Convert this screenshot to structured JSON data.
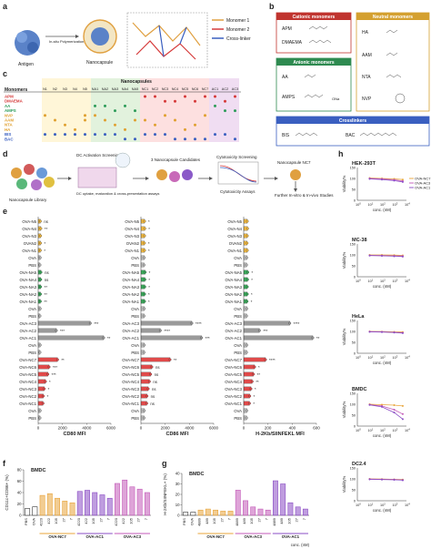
{
  "panels": {
    "a": {
      "letter": "a",
      "antigen": "Antigen",
      "step": "In-situ Polymerization",
      "nanocapsule": "Nanocapsule",
      "legend": [
        "Monomer 1",
        "Monomer 2",
        "Cross-linker"
      ]
    },
    "b": {
      "letter": "b",
      "cationic": {
        "title": "Cationic monomers",
        "items": [
          "APM",
          "DMAEMA"
        ]
      },
      "neutral": {
        "title": "Neutral monomers",
        "items": [
          "HA",
          "AAM",
          "NTA",
          "NVP"
        ]
      },
      "anionic": {
        "title": "Anionic monomers",
        "items": [
          "AA",
          "AMPS"
        ]
      },
      "crosslinkers": {
        "title": "Crosslinkers",
        "items": [
          "BIS",
          "BAC"
        ]
      },
      "chem_labels": [
        "ONa"
      ]
    },
    "c": {
      "letter": "c",
      "header_nanocapsules": "Nanocapsules",
      "header_monomers": "Monomers",
      "columns": [
        "N1",
        "N2",
        "N3",
        "N4",
        "N5",
        "NA1",
        "NA2",
        "NA3",
        "NA4",
        "NA5",
        "NC1",
        "NC2",
        "NC3",
        "NC4",
        "NC5",
        "NC6",
        "NC7",
        "AC1",
        "AC2",
        "AC3"
      ],
      "rows": [
        {
          "name": "APM",
          "color": "#d63a3a"
        },
        {
          "name": "DMAEMA",
          "color": "#d63a3a"
        },
        {
          "name": "AA",
          "color": "#2e9c5a"
        },
        {
          "name": "AMPS",
          "color": "#2e9c5a"
        },
        {
          "name": "NVP",
          "color": "#e0a030"
        },
        {
          "name": "AAM",
          "color": "#e0a030"
        },
        {
          "name": "NTA",
          "color": "#e0a030"
        },
        {
          "name": "HA",
          "color": "#e0a030"
        },
        {
          "name": "BIS",
          "color": "#3a5fc0"
        },
        {
          "name": "BAC",
          "color": "#3a5fc0"
        }
      ]
    },
    "d": {
      "letter": "d",
      "library": "Nanocapsule Library",
      "screen_title": "DC Activation Screening",
      "screen_sub": "DC uptake, maturation & cross-presentation assays",
      "candidates": "3 Nanocapsule Candidates",
      "cyto_title": "Cytotoxicity Screening",
      "cyto_sub": "Cytotoxicity Assays",
      "final": "Nanocapsule NC7",
      "further": "Further In-vitro & In-vivo Studies"
    },
    "e": {
      "letter": "e",
      "categories": [
        "OVA-N5",
        "OVA-N4",
        "OVA-N3",
        "OVAN2",
        "OVA-N1",
        "OVA",
        "PBS",
        "OVA-NA5",
        "OVA-NA4",
        "OVA-NA3",
        "OVA-NA2",
        "OVA-NA1",
        "OVA",
        "PBS",
        "OVA-AC3",
        "OVA-AC2",
        "OVA-AC1",
        "OVA",
        "PBS",
        "OVA-NC7",
        "OVA-NC6",
        "OVA-NC5",
        "OVA-NC4",
        "OVA-NC3",
        "OVA-NC2",
        "OVA-NC1",
        "OVA",
        "PBS"
      ]
    },
    "f": {
      "letter": "f",
      "title": "BMDC",
      "ylabel": "CD11c+CD86+ (%)"
    },
    "g": {
      "letter": "g",
      "title": "BMDC",
      "ylabel": "H-2Kb/SIINFEKL+ (%)",
      "conc": "conc. (nM)"
    },
    "h": {
      "letter": "h",
      "cells": [
        "HEK-293T",
        "MC-38",
        "HeLa",
        "BMDC",
        "DC2.4"
      ],
      "ylabel": "Viability%",
      "xlabel": "conc. (nM)",
      "legend": [
        "OVA-NC7",
        "OVA-AC3",
        "OVA-AC1"
      ]
    }
  },
  "chart_data": [
    {
      "type": "bar",
      "orientation": "horizontal",
      "xlabel": "CD80 MFI",
      "xlim": [
        0,
        6000
      ],
      "ticks": [
        0,
        2000,
        4000,
        6000
      ],
      "categories": [
        "OVA-N5",
        "OVA-N4",
        "OVA-N3",
        "OVAN2",
        "OVA-N1",
        "OVA",
        "PBS",
        "OVA-NA5",
        "OVA-NA4",
        "OVA-NA3",
        "OVA-NA2",
        "OVA-NA1",
        "OVA",
        "PBS",
        "OVA-AC3",
        "OVA-AC2",
        "OVA-AC1",
        "OVA",
        "PBS",
        "OVA-NC7",
        "OVA-NC6",
        "OVA-NC5",
        "OVA-NC4",
        "OVA-NC3",
        "OVA-NC2",
        "OVA-NC1",
        "OVA",
        "PBS"
      ],
      "values": [
        180,
        220,
        200,
        190,
        180,
        170,
        150,
        230,
        210,
        200,
        190,
        180,
        170,
        150,
        4300,
        1500,
        5400,
        170,
        150,
        1600,
        900,
        800,
        600,
        500,
        420,
        400,
        170,
        150
      ],
      "significance": [
        "ns",
        "**",
        "",
        "*",
        "*",
        "",
        "",
        "ns",
        "ns",
        "**",
        "**",
        "**",
        "",
        "",
        "***",
        "***",
        "**",
        "",
        "",
        "**",
        "***",
        "***",
        "*",
        "*",
        "*",
        "",
        "",
        ""
      ]
    },
    {
      "type": "bar",
      "orientation": "horizontal",
      "xlabel": "CD86 MFI",
      "xlim": [
        0,
        6000
      ],
      "ticks": [
        0,
        2000,
        4000,
        6000
      ],
      "categories": [
        "OVA-N5",
        "OVA-N4",
        "OVA-N3",
        "OVAN2",
        "OVA-N1",
        "OVA",
        "PBS",
        "OVA-NA5",
        "OVA-NA4",
        "OVA-NA3",
        "OVA-NA2",
        "OVA-NA1",
        "OVA",
        "PBS",
        "OVA-AC3",
        "OVA-AC2",
        "OVA-AC1",
        "OVA",
        "PBS",
        "OVA-NC7",
        "OVA-NC6",
        "OVA-NC5",
        "OVA-NC4",
        "OVA-NC3",
        "OVA-NC2",
        "OVA-NC1",
        "OVA",
        "PBS"
      ],
      "values": [
        300,
        320,
        300,
        290,
        300,
        280,
        260,
        350,
        330,
        320,
        300,
        300,
        280,
        260,
        4200,
        1600,
        5000,
        280,
        260,
        2400,
        900,
        800,
        700,
        600,
        500,
        480,
        280,
        260
      ],
      "significance": [
        "*",
        "*",
        "",
        "*",
        "*",
        "",
        "",
        "*",
        "*",
        "*",
        "*",
        "*",
        "",
        "",
        "****",
        "****",
        "***",
        "",
        "",
        "**",
        "ns",
        "ns",
        "ns",
        "ns",
        "ns",
        "ns",
        "",
        ""
      ]
    },
    {
      "type": "bar",
      "orientation": "horizontal",
      "xlabel": "H-2Kb/SIINFEKL MFI",
      "xlim": [
        0,
        600
      ],
      "ticks": [
        0,
        200,
        400,
        600
      ],
      "categories": [
        "OVA-N5",
        "OVA-N4",
        "OVA-N3",
        "OVAN2",
        "OVA-N1",
        "OVA",
        "PBS",
        "OVA-NA5",
        "OVA-NA4",
        "OVA-NA3",
        "OVA-NA2",
        "OVA-NA1",
        "OVA",
        "PBS",
        "OVA-AC3",
        "OVA-AC2",
        "OVA-AC1",
        "OVA",
        "PBS",
        "OVA-NC7",
        "OVA-NC6",
        "OVA-NC5",
        "OVA-NC4",
        "OVA-NC3",
        "OVA-NC2",
        "OVA-NC1",
        "OVA",
        "PBS"
      ],
      "values": [
        30,
        32,
        30,
        28,
        30,
        26,
        24,
        34,
        32,
        30,
        30,
        28,
        26,
        24,
        380,
        130,
        570,
        26,
        24,
        180,
        90,
        80,
        70,
        60,
        50,
        48,
        26,
        24
      ],
      "significance": [
        "",
        "",
        "",
        "",
        "",
        "",
        "",
        "*",
        "*",
        "",
        "*",
        "*",
        "",
        "",
        "****",
        "***",
        "**",
        "",
        "",
        "****",
        "*",
        "**",
        "**",
        "*",
        "*",
        "*",
        "",
        ""
      ]
    },
    {
      "type": "bar",
      "title": "BMDC",
      "ylabel": "CD11c+CD86+ (%)",
      "ylim": [
        0,
        80
      ],
      "ticks": [
        0,
        20,
        40,
        60,
        80
      ],
      "categories": [
        "PBS",
        "OVA",
        "4220",
        "422",
        "105",
        "27",
        "7",
        "4220",
        "422",
        "105",
        "27",
        "7",
        "4220",
        "422",
        "105",
        "27",
        "7"
      ],
      "groups": [
        {
          "name": "OVA-NC7",
          "range": [
            2,
            6
          ]
        },
        {
          "name": "OVA-AC1",
          "range": [
            7,
            11
          ]
        },
        {
          "name": "OVA-AC3",
          "range": [
            12,
            16
          ]
        }
      ],
      "values": [
        12,
        15,
        35,
        38,
        30,
        25,
        22,
        42,
        44,
        40,
        36,
        30,
        56,
        62,
        50,
        46,
        40
      ]
    },
    {
      "type": "bar",
      "title": "BMDC",
      "ylabel": "H-2Kb/SIINFEKL+ (%)",
      "ylim": [
        0,
        40
      ],
      "ticks": [
        0,
        10,
        20,
        30,
        40
      ],
      "categories": [
        "PBS",
        "OVA",
        "4889",
        "489",
        "105",
        "27",
        "7",
        "4889",
        "489",
        "105",
        "27",
        "7",
        "4889",
        "489",
        "105",
        "27",
        "7"
      ],
      "groups": [
        {
          "name": "OVA-NC7",
          "range": [
            2,
            6
          ]
        },
        {
          "name": "OVA-AC3",
          "range": [
            7,
            11
          ]
        },
        {
          "name": "OVA-AC1",
          "range": [
            12,
            16
          ]
        }
      ],
      "values": [
        3,
        3,
        5,
        6,
        5,
        4,
        4,
        24,
        14,
        8,
        6,
        5,
        33,
        30,
        12,
        8,
        6
      ]
    },
    {
      "type": "line",
      "title": "HEK-293T",
      "xlabel": "conc. (nM)",
      "ylabel": "Viability%",
      "xscale": "log",
      "xlim": [
        1,
        10000
      ],
      "ylim": [
        0,
        150
      ],
      "x": [
        10,
        100,
        1000,
        5000
      ],
      "series": [
        {
          "name": "OVA-NC7",
          "values": [
            102,
            100,
            98,
            95
          ]
        },
        {
          "name": "OVA-AC3",
          "values": [
            100,
            98,
            94,
            88
          ]
        },
        {
          "name": "OVA-AC1",
          "values": [
            98,
            95,
            90,
            84
          ]
        }
      ]
    },
    {
      "type": "line",
      "title": "MC-38",
      "xlabel": "conc. (nM)",
      "ylabel": "Viability%",
      "xscale": "log",
      "xlim": [
        1,
        10000
      ],
      "ylim": [
        0,
        150
      ],
      "x": [
        10,
        100,
        1000,
        5000
      ],
      "series": [
        {
          "name": "OVA-NC7",
          "values": [
            100,
            100,
            99,
            98
          ]
        },
        {
          "name": "OVA-AC3",
          "values": [
            98,
            97,
            96,
            95
          ]
        },
        {
          "name": "OVA-AC1",
          "values": [
            97,
            96,
            94,
            92
          ]
        }
      ]
    },
    {
      "type": "line",
      "title": "HeLa",
      "xlabel": "conc. (nM)",
      "ylabel": "Viability%",
      "xscale": "log",
      "xlim": [
        1,
        10000
      ],
      "ylim": [
        0,
        150
      ],
      "x": [
        10,
        100,
        1000,
        5000
      ],
      "series": [
        {
          "name": "OVA-NC7",
          "values": [
            100,
            99,
            98,
            97
          ]
        },
        {
          "name": "OVA-AC3",
          "values": [
            99,
            98,
            96,
            94
          ]
        },
        {
          "name": "OVA-AC1",
          "values": [
            98,
            97,
            95,
            92
          ]
        }
      ]
    },
    {
      "type": "line",
      "title": "BMDC",
      "xlabel": "conc. (nM)",
      "ylabel": "Viability%",
      "xscale": "log",
      "xlim": [
        1,
        10000
      ],
      "ylim": [
        0,
        150
      ],
      "x": [
        10,
        100,
        1000,
        5000
      ],
      "series": [
        {
          "name": "OVA-NC7",
          "values": [
            100,
            98,
            96,
            92
          ]
        },
        {
          "name": "OVA-AC3",
          "values": [
            98,
            92,
            75,
            55
          ]
        },
        {
          "name": "OVA-AC1",
          "values": [
            97,
            88,
            62,
            32
          ]
        }
      ]
    },
    {
      "type": "line",
      "title": "DC2.4",
      "xlabel": "conc. (nM)",
      "ylabel": "Viability%",
      "xscale": "log",
      "xlim": [
        1,
        10000
      ],
      "ylim": [
        0,
        150
      ],
      "x": [
        10,
        100,
        1000,
        5000
      ],
      "series": [
        {
          "name": "OVA-NC7",
          "values": [
            100,
            99,
            98,
            97
          ]
        },
        {
          "name": "OVA-AC3",
          "values": [
            99,
            98,
            97,
            95
          ]
        },
        {
          "name": "OVA-AC1",
          "values": [
            98,
            97,
            96,
            94
          ]
        }
      ]
    }
  ],
  "colors": {
    "NC7": "#e8a43a",
    "AC3": "#c35ab8",
    "AC1": "#8a4cc4",
    "cat": "#d63a3a",
    "neu": "#e0a030",
    "ani": "#2e9c5a",
    "cross": "#3a5fc0",
    "n": "#f0b840",
    "na": "#3aa85a",
    "ac": "#9a9a9a",
    "nc": "#e04a4a"
  }
}
